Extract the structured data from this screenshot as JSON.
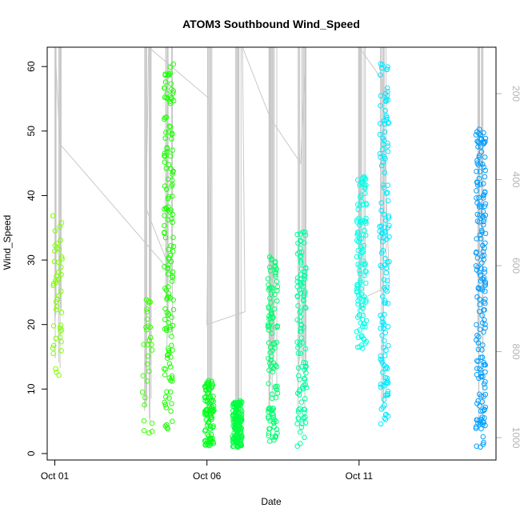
{
  "chart_data": {
    "type": "scatter",
    "title": "ATOM3 Southbound Wind_Speed",
    "xlabel": "Date",
    "ylabel": "Wind_Speed",
    "x_ticks": [
      {
        "label": "Oct 01",
        "date": "2016-10-01"
      },
      {
        "label": "Oct 06",
        "date": "2016-10-06"
      },
      {
        "label": "Oct 11",
        "date": "2016-10-11"
      }
    ],
    "xlim": [
      "2016-09-30T18:00",
      "2016-10-15T12:00"
    ],
    "ylim": [
      -1,
      63
    ],
    "y_ticks": [
      0,
      10,
      20,
      30,
      40,
      50,
      60
    ],
    "secondary_axis": {
      "ticks": [
        200,
        400,
        600,
        800,
        1000
      ],
      "reversed": true,
      "range": [
        92,
        1052
      ],
      "color": "#b3b3b3"
    },
    "marker": "open-circle",
    "background_trace_color": "#c8c8c8",
    "color_gradient": [
      "#7fff00",
      "#00ff2a",
      "#00ffd5",
      "#0080ff"
    ],
    "clusters": [
      {
        "date": "2016-10-01T02:00",
        "ymin": 11.5,
        "ymax": 37.5,
        "color": "#7fff00",
        "n": 45
      },
      {
        "date": "2016-10-04T01:00",
        "ymin": 2.5,
        "ymax": 24,
        "color": "#3bff00",
        "n": 30
      },
      {
        "date": "2016-10-04T18:00",
        "ymin": 3.5,
        "ymax": 61,
        "color": "#1cff00",
        "n": 150
      },
      {
        "date": "2016-10-06T02:00",
        "ymin": 1.2,
        "ymax": 11.5,
        "color": "#00ff1a",
        "n": 90
      },
      {
        "date": "2016-10-07T00:00",
        "ymin": 1.0,
        "ymax": 8.2,
        "color": "#00ff40",
        "n": 160
      },
      {
        "date": "2016-10-08T04:00",
        "ymin": 1.5,
        "ymax": 30.5,
        "color": "#00ff70",
        "n": 110
      },
      {
        "date": "2016-10-09T03:00",
        "ymin": 1.0,
        "ymax": 34.5,
        "color": "#00ffa0",
        "n": 110
      },
      {
        "date": "2016-10-11T02:00",
        "ymin": 16,
        "ymax": 43.5,
        "color": "#00ffe8",
        "n": 110
      },
      {
        "date": "2016-10-11T20:00",
        "ymin": 4.5,
        "ymax": 61,
        "color": "#00e8ff",
        "n": 140
      },
      {
        "date": "2016-10-15T00:00",
        "ymin": 1.0,
        "ymax": 50.5,
        "color": "#009fff",
        "n": 180
      }
    ]
  }
}
